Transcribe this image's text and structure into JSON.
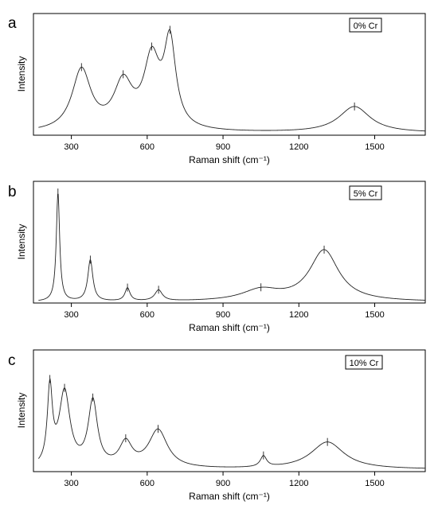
{
  "chart_data": [
    {
      "type": "line",
      "panel_label": "a",
      "legend": "0% Cr",
      "legend_position": "top-right",
      "xlabel": "Raman shift (cm⁻¹)",
      "ylabel": "Intensity",
      "xlim": [
        150,
        1700
      ],
      "ylim": [
        0,
        1.12
      ],
      "xticks": [
        300,
        600,
        900,
        1200,
        1500
      ],
      "grid": false,
      "baseline": 0.02,
      "peaks": [
        {
          "x": 340,
          "height": 0.56,
          "width": 45
        },
        {
          "x": 505,
          "height": 0.42,
          "width": 45
        },
        {
          "x": 618,
          "height": 0.62,
          "width": 38
        },
        {
          "x": 690,
          "height": 0.78,
          "width": 28
        },
        {
          "x": 1420,
          "height": 0.24,
          "width": 75
        }
      ],
      "peak_marks": [
        340,
        505,
        618,
        690,
        1420
      ]
    },
    {
      "type": "line",
      "panel_label": "b",
      "legend": "5% Cr",
      "legend_position": "top-right",
      "xlabel": "Raman shift (cm⁻¹)",
      "ylabel": "Intensity",
      "xlim": [
        150,
        1700
      ],
      "ylim": [
        0,
        1.12
      ],
      "xticks": [
        300,
        600,
        900,
        1200,
        1500
      ],
      "grid": false,
      "baseline": 0.01,
      "peaks": [
        {
          "x": 247,
          "height": 1.0,
          "width": 8
        },
        {
          "x": 375,
          "height": 0.38,
          "width": 12
        },
        {
          "x": 522,
          "height": 0.12,
          "width": 12
        },
        {
          "x": 645,
          "height": 0.1,
          "width": 18
        },
        {
          "x": 1050,
          "height": 0.1,
          "width": 90
        },
        {
          "x": 1300,
          "height": 0.47,
          "width": 70
        }
      ],
      "peak_marks": [
        247,
        375,
        522,
        645,
        1050,
        1300
      ]
    },
    {
      "type": "line",
      "panel_label": "c",
      "legend": "10% Cr",
      "legend_position": "top-right",
      "xlabel": "Raman shift (cm⁻¹)",
      "ylabel": "Intensity",
      "xlim": [
        150,
        1700
      ],
      "ylim": [
        0,
        1.12
      ],
      "xticks": [
        300,
        600,
        900,
        1200,
        1500
      ],
      "grid": false,
      "baseline": 0.02,
      "peaks": [
        {
          "x": 215,
          "height": 0.7,
          "width": 12
        },
        {
          "x": 273,
          "height": 0.69,
          "width": 26
        },
        {
          "x": 385,
          "height": 0.6,
          "width": 22
        },
        {
          "x": 515,
          "height": 0.22,
          "width": 30
        },
        {
          "x": 643,
          "height": 0.35,
          "width": 45
        },
        {
          "x": 1060,
          "height": 0.1,
          "width": 15
        },
        {
          "x": 1313,
          "height": 0.25,
          "width": 80
        }
      ],
      "peak_marks": [
        215,
        273,
        385,
        515,
        643,
        1060,
        1313
      ]
    }
  ]
}
